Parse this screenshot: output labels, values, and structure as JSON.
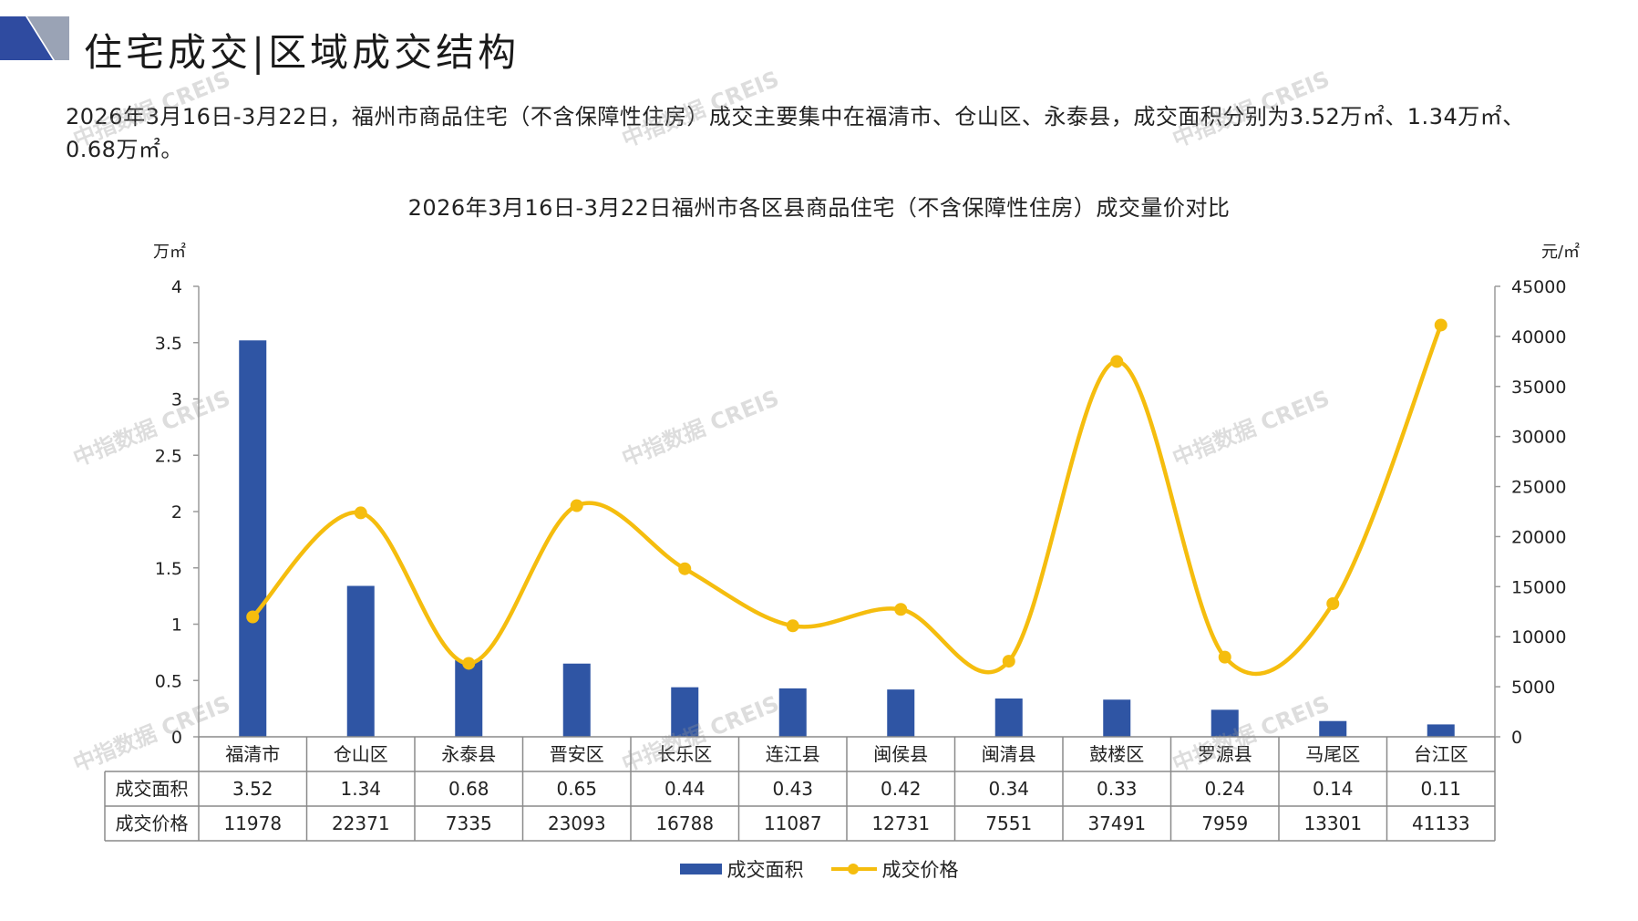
{
  "header": {
    "title": "住宅成交|区域成交结构",
    "colors": {
      "logo_blue": "#2F4BA0",
      "logo_grey": "#9AA3B5"
    }
  },
  "summary": "2026年3月16日-3月22日，福州市商品住宅（不含保障性住房）成交主要集中在福清市、仓山区、永泰县，成交面积分别为3.52万㎡、1.34万㎡、0.68万㎡。",
  "watermark": "中指数据 CREIS",
  "chart_data": {
    "type": "bar+line",
    "title": "2026年3月16日-3月22日福州市各区县商品住宅（不含保障性住房）成交量价对比",
    "y_left_unit": "万㎡",
    "y_right_unit": "元/㎡",
    "y_left_lim": [
      0,
      4
    ],
    "y_left_ticks": [
      "4",
      "3.5",
      "3",
      "2.5",
      "2",
      "1.5",
      "1",
      "0.5",
      "0"
    ],
    "y_right_lim": [
      0,
      45000
    ],
    "y_right_ticks": [
      "45000",
      "40000",
      "35000",
      "30000",
      "25000",
      "20000",
      "15000",
      "10000",
      "5000",
      "0"
    ],
    "categories": [
      "福清市",
      "仓山区",
      "永泰县",
      "晋安区",
      "长乐区",
      "连江县",
      "闽侯县",
      "闽清县",
      "鼓楼区",
      "罗源县",
      "马尾区",
      "台江区"
    ],
    "series": [
      {
        "name": "成交面积",
        "kind": "bar",
        "axis": "left",
        "color": "#2F55A4",
        "values": [
          3.52,
          1.34,
          0.68,
          0.65,
          0.44,
          0.43,
          0.42,
          0.34,
          0.33,
          0.24,
          0.14,
          0.11
        ],
        "labels": [
          "3.52",
          "1.34",
          "0.68",
          "0.65",
          "0.44",
          "0.43",
          "0.42",
          "0.34",
          "0.33",
          "0.24",
          "0.14",
          "0.11"
        ]
      },
      {
        "name": "成交价格",
        "kind": "line",
        "axis": "right",
        "color": "#F5BD0E",
        "values": [
          11978,
          22371,
          7335,
          23093,
          16788,
          11087,
          12731,
          7551,
          37491,
          7959,
          13301,
          41133
        ],
        "labels": [
          "11978",
          "22371",
          "7335",
          "23093",
          "16788",
          "11087",
          "12731",
          "7551",
          "37491",
          "7959",
          "13301",
          "41133"
        ]
      }
    ],
    "grid": false,
    "legend_position": "bottom-center",
    "has_data_table": true
  }
}
